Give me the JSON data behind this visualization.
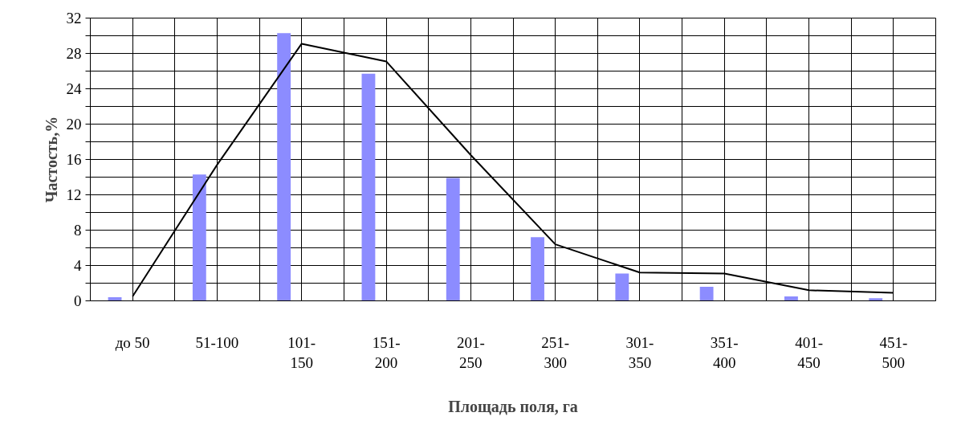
{
  "chart_data": {
    "type": "bar",
    "xlabel": "Площадь поля, га",
    "ylabel": "Частость,%",
    "categories": [
      "до 50",
      "51-100",
      "101-150",
      "151-200",
      "201-250",
      "251-300",
      "301-350",
      "351-400",
      "401-450",
      "451-500"
    ],
    "series": [
      {
        "color": "#8c8cff",
        "values": [
          0.4,
          14.3,
          30.3,
          25.7,
          13.9,
          7.2,
          3.1,
          1.6,
          0.5,
          0.3
        ]
      },
      {
        "type": "line",
        "color": "#000000",
        "values": [
          0.5,
          15.4,
          29.1,
          27.1,
          16.5,
          6.4,
          3.2,
          3.1,
          1.2,
          0.9
        ]
      }
    ],
    "ylim": [
      0,
      32
    ],
    "yticks": [
      0,
      {
        "value": 2,
        "label": null
      },
      4,
      {
        "value": 6,
        "label": null
      },
      8,
      {
        "value": 10,
        "label": null
      },
      12,
      {
        "value": 14,
        "label": null
      },
      16,
      {
        "value": 18,
        "label": null
      },
      20,
      {
        "value": 22,
        "label": null
      },
      24,
      {
        "value": 26,
        "label": null
      },
      28,
      {
        "value": 30,
        "label": null
      },
      32
    ],
    "grid": true,
    "marker": "none",
    "line_style": "solid"
  }
}
